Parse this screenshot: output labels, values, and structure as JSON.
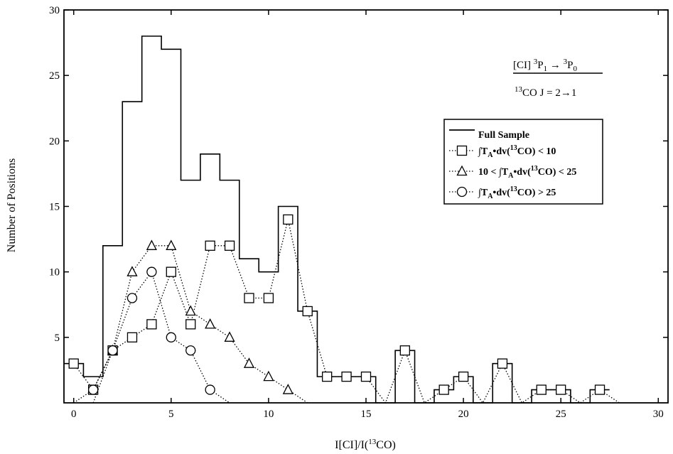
{
  "chart_data": {
    "type": "line",
    "xlabel": {
      "main": "I[CI]/I(",
      "sup": "13",
      "tail": "CO)"
    },
    "ylabel": "Number of Positions",
    "xlim": [
      -0.5,
      30.5
    ],
    "ylim": [
      0,
      30
    ],
    "x_ticks": [
      0,
      5,
      10,
      15,
      20,
      25,
      30
    ],
    "y_ticks": [
      5,
      10,
      15,
      20,
      25,
      30
    ],
    "grid": false,
    "legend_position": "right",
    "equation": {
      "num_main": "[CI] ",
      "num_sup1": "3",
      "num_p1": "P",
      "num_sub1": "1",
      "num_arrow": " → ",
      "num_sup2": "3",
      "num_p2": "P",
      "num_sub2": "0",
      "den_sup": "13",
      "den_main": "CO J = 2→1"
    },
    "legend": [
      {
        "marker": "line",
        "pre": "",
        "int": "",
        "t": "",
        "sub": "",
        "mid": "",
        "sup": "",
        "post": "Full Sample"
      },
      {
        "marker": "square",
        "pre": "",
        "int": "∫",
        "t": "T",
        "sub": "A",
        "mid": "•dv(",
        "sup": "13",
        "post": "CO) < 10"
      },
      {
        "marker": "triangle",
        "pre": "10 < ",
        "int": "∫",
        "t": "T",
        "sub": "A",
        "mid": "•dv(",
        "sup": "13",
        "post": "CO) < 25"
      },
      {
        "marker": "circle",
        "pre": "",
        "int": "∫",
        "t": "T",
        "sub": "A",
        "mid": "•dv(",
        "sup": "13",
        "post": "CO) > 25"
      }
    ],
    "series": [
      {
        "name": "Full Sample",
        "style": "step",
        "x": [
          -0.5,
          0.5,
          1.5,
          2.5,
          3.5,
          4.5,
          5.5,
          6.5,
          7.5,
          8.5,
          9.5,
          10.5,
          11.5,
          12.5,
          13.5,
          14.5,
          15.5,
          16.5,
          17.5,
          18.5,
          19.5,
          20.5,
          21.5,
          22.5,
          23.5,
          24.5,
          25.5,
          26.5,
          27.5
        ],
        "y": [
          3,
          2,
          12,
          23,
          28,
          27,
          17,
          19,
          17,
          11,
          10,
          15,
          7,
          2,
          2,
          2,
          0,
          4,
          0,
          1,
          2,
          0,
          3,
          0,
          1,
          1,
          0,
          1,
          0
        ]
      },
      {
        "name": "∫TA•dv(13CO) < 10",
        "style": "dotted",
        "marker": "square",
        "x": [
          0,
          1,
          2,
          3,
          4,
          5,
          6,
          7,
          8,
          9,
          10,
          11,
          12,
          13,
          14,
          15,
          16,
          17,
          18,
          19,
          20,
          21,
          22,
          23,
          24,
          25,
          26,
          27,
          28
        ],
        "y": [
          3,
          1,
          4,
          5,
          6,
          10,
          6,
          12,
          12,
          8,
          8,
          14,
          7,
          2,
          2,
          2,
          0,
          4,
          0,
          1,
          2,
          0,
          3,
          0,
          1,
          1,
          0,
          1,
          0
        ],
        "marked": [
          true,
          true,
          true,
          true,
          true,
          true,
          true,
          true,
          true,
          true,
          true,
          true,
          true,
          true,
          true,
          true,
          false,
          true,
          false,
          true,
          true,
          false,
          true,
          false,
          true,
          true,
          false,
          true,
          false
        ]
      },
      {
        "name": "10 < ∫TA•dv(13CO) < 25",
        "style": "dotted",
        "marker": "triangle",
        "x": [
          1,
          2,
          3,
          4,
          5,
          6,
          7,
          8,
          9,
          10,
          11,
          12
        ],
        "y": [
          0,
          4,
          10,
          12,
          12,
          7,
          6,
          5,
          3,
          2,
          1,
          0
        ],
        "marked": [
          false,
          true,
          true,
          true,
          true,
          true,
          true,
          true,
          true,
          true,
          true,
          false
        ]
      },
      {
        "name": "∫TA•dv(13CO) > 25",
        "style": "dotted",
        "marker": "circle",
        "x": [
          0,
          1,
          2,
          3,
          4,
          5,
          6,
          7,
          8
        ],
        "y": [
          0,
          1,
          4,
          8,
          10,
          5,
          4,
          1,
          0
        ],
        "marked": [
          false,
          true,
          true,
          true,
          true,
          true,
          true,
          true,
          false
        ]
      }
    ]
  }
}
